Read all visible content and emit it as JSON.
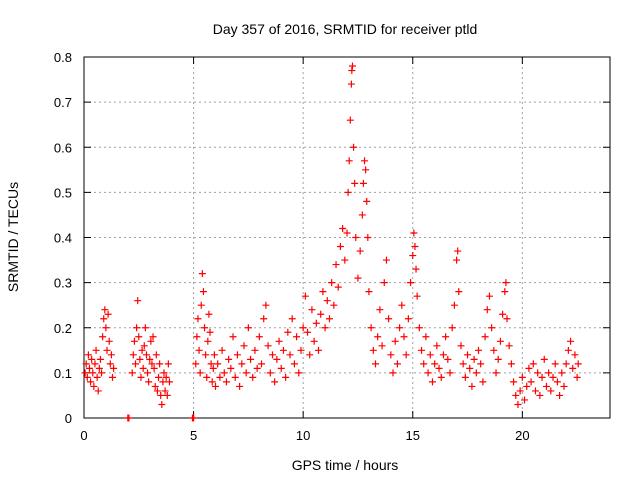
{
  "chart_data": {
    "type": "scatter",
    "title": "Day 357 of 2016, SRMTID for receiver ptld",
    "xlabel": "GPS time / hours",
    "ylabel": "SRMTID / TECUs",
    "xlim": [
      0,
      24
    ],
    "ylim": [
      0,
      0.8
    ],
    "x_ticks": [
      0,
      5,
      10,
      15,
      20
    ],
    "y_ticks": [
      0,
      0.1,
      0.2,
      0.3,
      0.4,
      0.5,
      0.6,
      0.7,
      0.8
    ],
    "x_tick_labels": [
      "0",
      "5",
      "10",
      "15",
      "20"
    ],
    "y_tick_labels": [
      "0",
      "0.1",
      "0.2",
      "0.3",
      "0.4",
      "0.5",
      "0.6",
      "0.7",
      "0.8"
    ],
    "grid": true,
    "marker": "+",
    "series": [
      {
        "name": "SRMTID",
        "color": "#ff0000",
        "points": [
          [
            0.05,
            0.1
          ],
          [
            0.1,
            0.12
          ],
          [
            0.15,
            0.09
          ],
          [
            0.2,
            0.14
          ],
          [
            0.25,
            0.11
          ],
          [
            0.3,
            0.08
          ],
          [
            0.35,
            0.13
          ],
          [
            0.4,
            0.1
          ],
          [
            0.45,
            0.07
          ],
          [
            0.5,
            0.12
          ],
          [
            0.55,
            0.15
          ],
          [
            0.6,
            0.09
          ],
          [
            0.65,
            0.06
          ],
          [
            0.7,
            0.11
          ],
          [
            0.75,
            0.13
          ],
          [
            0.8,
            0.1
          ],
          [
            0.85,
            0.18
          ],
          [
            0.9,
            0.22
          ],
          [
            0.95,
            0.24
          ],
          [
            1.0,
            0.2
          ],
          [
            1.05,
            0.15
          ],
          [
            1.1,
            0.23
          ],
          [
            1.15,
            0.17
          ],
          [
            1.2,
            0.12
          ],
          [
            1.25,
            0.14
          ],
          [
            1.3,
            0.09
          ],
          [
            1.35,
            0.11
          ],
          [
            2.0,
            0.0
          ],
          [
            2.05,
            0.0
          ],
          [
            2.2,
            0.1
          ],
          [
            2.25,
            0.14
          ],
          [
            2.3,
            0.17
          ],
          [
            2.35,
            0.12
          ],
          [
            2.4,
            0.2
          ],
          [
            2.45,
            0.26
          ],
          [
            2.5,
            0.18
          ],
          [
            2.55,
            0.13
          ],
          [
            2.6,
            0.09
          ],
          [
            2.65,
            0.15
          ],
          [
            2.7,
            0.11
          ],
          [
            2.75,
            0.16
          ],
          [
            2.8,
            0.2
          ],
          [
            2.85,
            0.14
          ],
          [
            2.9,
            0.1
          ],
          [
            2.95,
            0.08
          ],
          [
            3.0,
            0.13
          ],
          [
            3.05,
            0.17
          ],
          [
            3.1,
            0.12
          ],
          [
            3.15,
            0.18
          ],
          [
            3.2,
            0.11
          ],
          [
            3.25,
            0.07
          ],
          [
            3.3,
            0.14
          ],
          [
            3.35,
            0.06
          ],
          [
            3.4,
            0.09
          ],
          [
            3.45,
            0.12
          ],
          [
            3.5,
            0.05
          ],
          [
            3.55,
            0.03
          ],
          [
            3.6,
            0.08
          ],
          [
            3.65,
            0.1
          ],
          [
            3.7,
            0.06
          ],
          [
            3.75,
            0.09
          ],
          [
            3.8,
            0.05
          ],
          [
            3.85,
            0.12
          ],
          [
            3.9,
            0.08
          ],
          [
            4.95,
            0.0
          ],
          [
            5.0,
            0.0
          ],
          [
            5.1,
            0.12
          ],
          [
            5.15,
            0.18
          ],
          [
            5.2,
            0.22
          ],
          [
            5.25,
            0.15
          ],
          [
            5.3,
            0.1
          ],
          [
            5.35,
            0.25
          ],
          [
            5.4,
            0.32
          ],
          [
            5.45,
            0.28
          ],
          [
            5.5,
            0.2
          ],
          [
            5.55,
            0.14
          ],
          [
            5.6,
            0.09
          ],
          [
            5.65,
            0.17
          ],
          [
            5.7,
            0.23
          ],
          [
            5.75,
            0.19
          ],
          [
            5.8,
            0.12
          ],
          [
            5.85,
            0.08
          ],
          [
            5.9,
            0.11
          ],
          [
            5.95,
            0.14
          ],
          [
            6.0,
            0.07
          ],
          [
            6.1,
            0.12
          ],
          [
            6.2,
            0.09
          ],
          [
            6.3,
            0.15
          ],
          [
            6.4,
            0.1
          ],
          [
            6.5,
            0.08
          ],
          [
            6.6,
            0.13
          ],
          [
            6.7,
            0.11
          ],
          [
            6.8,
            0.18
          ],
          [
            6.9,
            0.09
          ],
          [
            7.0,
            0.14
          ],
          [
            7.1,
            0.07
          ],
          [
            7.2,
            0.12
          ],
          [
            7.3,
            0.16
          ],
          [
            7.4,
            0.1
          ],
          [
            7.5,
            0.2
          ],
          [
            7.6,
            0.13
          ],
          [
            7.7,
            0.09
          ],
          [
            7.8,
            0.15
          ],
          [
            7.9,
            0.11
          ],
          [
            8.0,
            0.18
          ],
          [
            8.1,
            0.12
          ],
          [
            8.2,
            0.22
          ],
          [
            8.3,
            0.25
          ],
          [
            8.4,
            0.16
          ],
          [
            8.5,
            0.1
          ],
          [
            8.6,
            0.14
          ],
          [
            8.7,
            0.08
          ],
          [
            8.8,
            0.13
          ],
          [
            8.9,
            0.17
          ],
          [
            9.0,
            0.11
          ],
          [
            9.1,
            0.15
          ],
          [
            9.2,
            0.09
          ],
          [
            9.3,
            0.19
          ],
          [
            9.4,
            0.14
          ],
          [
            9.5,
            0.22
          ],
          [
            9.6,
            0.12
          ],
          [
            9.7,
            0.18
          ],
          [
            9.8,
            0.1
          ],
          [
            9.9,
            0.15
          ],
          [
            10.0,
            0.2
          ],
          [
            10.1,
            0.27
          ],
          [
            10.2,
            0.19
          ],
          [
            10.3,
            0.14
          ],
          [
            10.4,
            0.24
          ],
          [
            10.5,
            0.17
          ],
          [
            10.6,
            0.21
          ],
          [
            10.7,
            0.15
          ],
          [
            10.8,
            0.23
          ],
          [
            10.9,
            0.28
          ],
          [
            11.0,
            0.2
          ],
          [
            11.1,
            0.26
          ],
          [
            11.2,
            0.22
          ],
          [
            11.3,
            0.3
          ],
          [
            11.4,
            0.25
          ],
          [
            11.5,
            0.34
          ],
          [
            11.6,
            0.29
          ],
          [
            11.7,
            0.38
          ],
          [
            11.8,
            0.42
          ],
          [
            11.9,
            0.35
          ],
          [
            12.0,
            0.41
          ],
          [
            12.05,
            0.5
          ],
          [
            12.1,
            0.57
          ],
          [
            12.15,
            0.66
          ],
          [
            12.2,
            0.74
          ],
          [
            12.22,
            0.77
          ],
          [
            12.25,
            0.78
          ],
          [
            12.3,
            0.6
          ],
          [
            12.35,
            0.52
          ],
          [
            12.4,
            0.4
          ],
          [
            12.5,
            0.31
          ],
          [
            12.6,
            0.37
          ],
          [
            12.7,
            0.45
          ],
          [
            12.75,
            0.52
          ],
          [
            12.8,
            0.57
          ],
          [
            12.85,
            0.55
          ],
          [
            12.9,
            0.48
          ],
          [
            12.95,
            0.4
          ],
          [
            13.0,
            0.28
          ],
          [
            13.1,
            0.2
          ],
          [
            13.2,
            0.15
          ],
          [
            13.3,
            0.12
          ],
          [
            13.4,
            0.18
          ],
          [
            13.5,
            0.24
          ],
          [
            13.6,
            0.16
          ],
          [
            13.7,
            0.3
          ],
          [
            13.8,
            0.35
          ],
          [
            13.9,
            0.22
          ],
          [
            14.0,
            0.14
          ],
          [
            14.1,
            0.1
          ],
          [
            14.2,
            0.17
          ],
          [
            14.3,
            0.12
          ],
          [
            14.4,
            0.2
          ],
          [
            14.5,
            0.25
          ],
          [
            14.6,
            0.18
          ],
          [
            14.7,
            0.14
          ],
          [
            14.8,
            0.22
          ],
          [
            14.9,
            0.3
          ],
          [
            15.0,
            0.36
          ],
          [
            15.05,
            0.41
          ],
          [
            15.1,
            0.38
          ],
          [
            15.15,
            0.33
          ],
          [
            15.2,
            0.27
          ],
          [
            15.3,
            0.2
          ],
          [
            15.4,
            0.15
          ],
          [
            15.5,
            0.12
          ],
          [
            15.6,
            0.18
          ],
          [
            15.7,
            0.1
          ],
          [
            15.8,
            0.14
          ],
          [
            15.9,
            0.08
          ],
          [
            16.0,
            0.12
          ],
          [
            16.1,
            0.16
          ],
          [
            16.2,
            0.11
          ],
          [
            16.3,
            0.09
          ],
          [
            16.4,
            0.14
          ],
          [
            16.5,
            0.18
          ],
          [
            16.6,
            0.13
          ],
          [
            16.7,
            0.1
          ],
          [
            16.8,
            0.2
          ],
          [
            16.9,
            0.25
          ],
          [
            17.0,
            0.35
          ],
          [
            17.05,
            0.37
          ],
          [
            17.1,
            0.28
          ],
          [
            17.2,
            0.16
          ],
          [
            17.3,
            0.12
          ],
          [
            17.4,
            0.09
          ],
          [
            17.5,
            0.14
          ],
          [
            17.6,
            0.11
          ],
          [
            17.7,
            0.07
          ],
          [
            17.8,
            0.13
          ],
          [
            17.9,
            0.1
          ],
          [
            18.0,
            0.15
          ],
          [
            18.1,
            0.12
          ],
          [
            18.2,
            0.08
          ],
          [
            18.3,
            0.18
          ],
          [
            18.4,
            0.24
          ],
          [
            18.5,
            0.27
          ],
          [
            18.6,
            0.2
          ],
          [
            18.7,
            0.15
          ],
          [
            18.8,
            0.1
          ],
          [
            18.9,
            0.13
          ],
          [
            19.0,
            0.17
          ],
          [
            19.1,
            0.23
          ],
          [
            19.2,
            0.28
          ],
          [
            19.25,
            0.3
          ],
          [
            19.3,
            0.22
          ],
          [
            19.4,
            0.16
          ],
          [
            19.5,
            0.12
          ],
          [
            19.6,
            0.08
          ],
          [
            19.7,
            0.05
          ],
          [
            19.8,
            0.03
          ],
          [
            19.9,
            0.06
          ],
          [
            20.0,
            0.09
          ],
          [
            20.1,
            0.04
          ],
          [
            20.2,
            0.07
          ],
          [
            20.3,
            0.11
          ],
          [
            20.4,
            0.08
          ],
          [
            20.5,
            0.12
          ],
          [
            20.6,
            0.06
          ],
          [
            20.7,
            0.1
          ],
          [
            20.8,
            0.05
          ],
          [
            20.9,
            0.09
          ],
          [
            21.0,
            0.13
          ],
          [
            21.1,
            0.07
          ],
          [
            21.2,
            0.1
          ],
          [
            21.3,
            0.06
          ],
          [
            21.4,
            0.09
          ],
          [
            21.5,
            0.12
          ],
          [
            21.6,
            0.08
          ],
          [
            21.7,
            0.05
          ],
          [
            21.8,
            0.1
          ],
          [
            21.9,
            0.07
          ],
          [
            22.0,
            0.12
          ],
          [
            22.1,
            0.15
          ],
          [
            22.2,
            0.17
          ],
          [
            22.3,
            0.11
          ],
          [
            22.4,
            0.14
          ],
          [
            22.5,
            0.09
          ],
          [
            22.55,
            0.12
          ]
        ]
      }
    ]
  }
}
